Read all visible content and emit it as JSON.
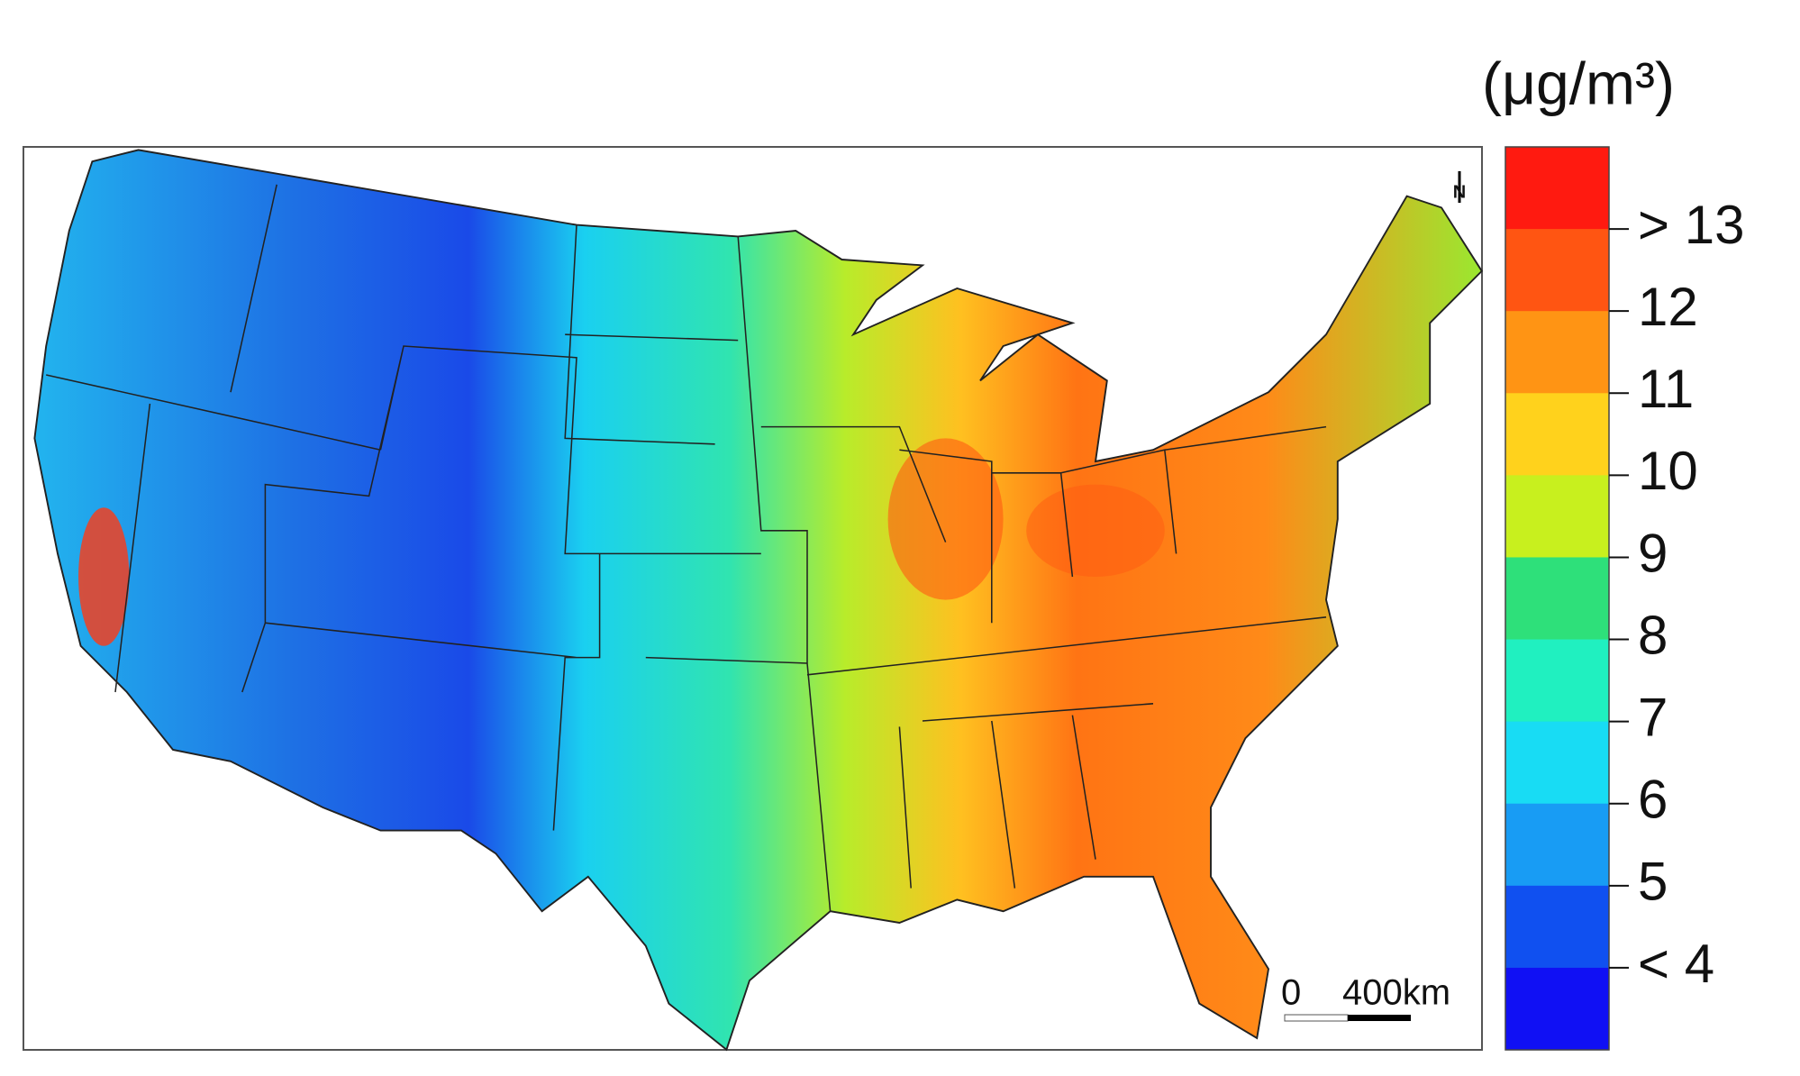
{
  "map": {
    "north_label": "N",
    "scale_bar": {
      "labels": [
        "0",
        "400km"
      ]
    },
    "legend": {
      "title": "(μg/m³)",
      "colors": [
        "#ff1a10",
        "#ff5512",
        "#ff9414",
        "#ffd21c",
        "#c8f01e",
        "#2ee07a",
        "#20f0c0",
        "#18dcf4",
        "#189cf4",
        "#1050f0",
        "#1010f4"
      ],
      "labels": [
        "> 13",
        "12",
        "11",
        "10",
        "9",
        "8",
        "7",
        "6",
        "5",
        "< 4"
      ]
    }
  }
}
